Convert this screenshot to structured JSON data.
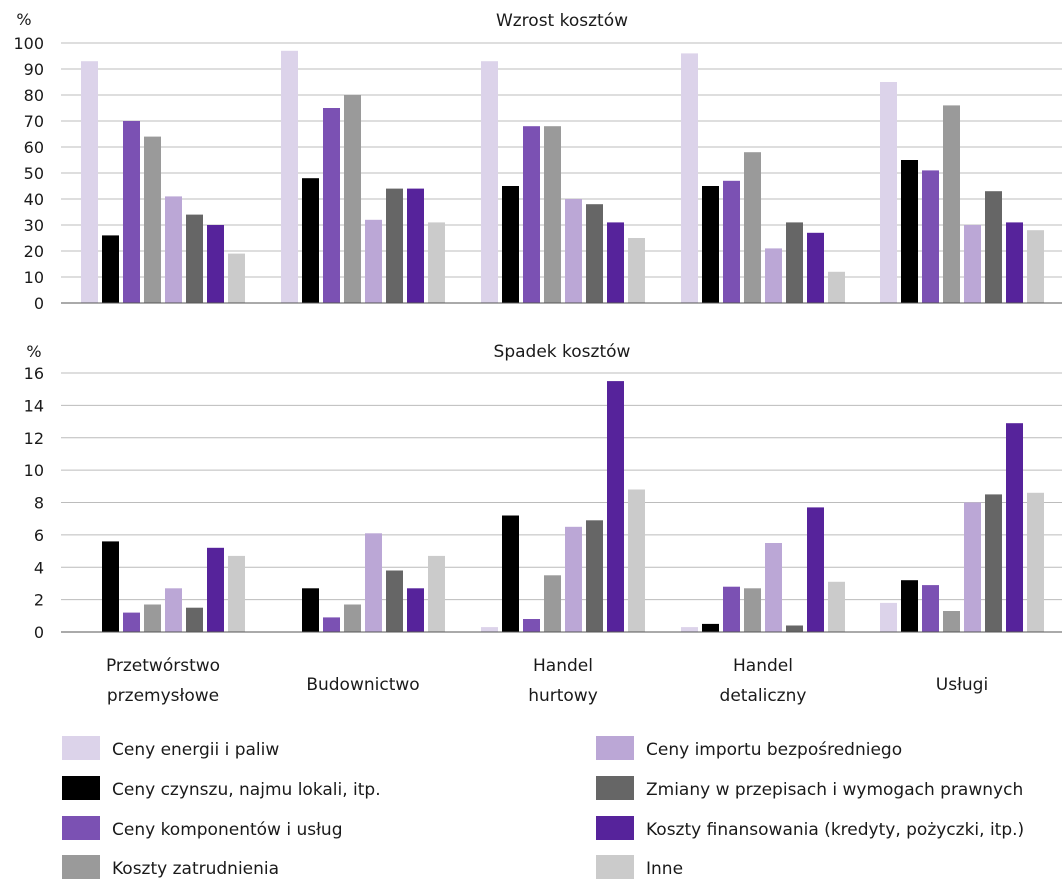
{
  "colors": {
    "series": [
      "#dcd3ea",
      "#000000",
      "#7b51b3",
      "#9a9a9a",
      "#bba7d6",
      "#666666",
      "#56239b",
      "#cbcbcb"
    ],
    "grid": "#bcbcbc",
    "axis": "#555555",
    "text": "#1a1a1a"
  },
  "legend": {
    "position": "bottom",
    "items": [
      "Ceny energii i paliw",
      "Ceny czynszu, najmu lokali, itp.",
      "Ceny komponentów i usług",
      "Koszty zatrudnienia",
      "Ceny importu bezpośredniego",
      "Zmiany w przepisach i wymogach prawnych",
      "Koszty finansowania (kredyty, pożyczki, itp.)",
      "Inne"
    ]
  },
  "category_labels": [
    [
      "Przetwórstwo",
      "przemysłowe"
    ],
    [
      "Budownictwo"
    ],
    [
      "Handel",
      "hurtowy"
    ],
    [
      "Handel",
      "detaliczny"
    ],
    [
      "Usługi"
    ]
  ],
  "chart_data": [
    {
      "type": "bar",
      "title": "Wzrost kosztów",
      "ylabel": "%",
      "xlabel": "",
      "ylim": [
        0,
        100
      ],
      "yticks": [
        0,
        10,
        20,
        30,
        40,
        50,
        60,
        70,
        80,
        90,
        100
      ],
      "grid": true,
      "categories": [
        "Przetwórstwo przemysłowe",
        "Budownictwo",
        "Handel hurtowy",
        "Handel detaliczny",
        "Usługi"
      ],
      "series": [
        {
          "name": "Ceny energii i paliw",
          "values": [
            93,
            97,
            93,
            96,
            85
          ]
        },
        {
          "name": "Ceny czynszu, najmu lokali, itp.",
          "values": [
            26,
            48,
            45,
            45,
            55
          ]
        },
        {
          "name": "Ceny komponentów i usług",
          "values": [
            70,
            75,
            68,
            47,
            51
          ]
        },
        {
          "name": "Koszty zatrudnienia",
          "values": [
            64,
            80,
            68,
            58,
            76
          ]
        },
        {
          "name": "Ceny importu bezpośredniego",
          "values": [
            41,
            32,
            40,
            21,
            30
          ]
        },
        {
          "name": "Zmiany w przepisach i wymogach prawnych",
          "values": [
            34,
            44,
            38,
            31,
            43
          ]
        },
        {
          "name": "Koszty finansowania (kredyty, pożyczki, itp.)",
          "values": [
            30,
            44,
            31,
            27,
            31
          ]
        },
        {
          "name": "Inne",
          "values": [
            19,
            31,
            25,
            12,
            28
          ]
        }
      ]
    },
    {
      "type": "bar",
      "title": "Spadek kosztów",
      "ylabel": "%",
      "xlabel": "",
      "ylim": [
        0,
        16
      ],
      "yticks": [
        0,
        2,
        4,
        6,
        8,
        10,
        12,
        14,
        16
      ],
      "grid": true,
      "categories": [
        "Przetwórstwo przemysłowe",
        "Budownictwo",
        "Handel hurtowy",
        "Handel detaliczny",
        "Usługi"
      ],
      "series": [
        {
          "name": "Ceny energii i paliw",
          "values": [
            0,
            0,
            0.3,
            0.3,
            1.8
          ]
        },
        {
          "name": "Ceny czynszu, najmu lokali, itp.",
          "values": [
            5.6,
            2.7,
            7.2,
            0.5,
            3.2
          ]
        },
        {
          "name": "Ceny komponentów i usług",
          "values": [
            1.2,
            0.9,
            0.8,
            2.8,
            2.9
          ]
        },
        {
          "name": "Koszty zatrudnienia",
          "values": [
            1.7,
            1.7,
            3.5,
            2.7,
            1.3
          ]
        },
        {
          "name": "Ceny importu bezpośredniego",
          "values": [
            2.7,
            6.1,
            6.5,
            5.5,
            8.0
          ]
        },
        {
          "name": "Zmiany w przepisach i wymogach prawnych",
          "values": [
            1.5,
            3.8,
            6.9,
            0.4,
            8.5
          ]
        },
        {
          "name": "Koszty finansowania (kredyty, pożyczki, itp.)",
          "values": [
            5.2,
            2.7,
            15.5,
            7.7,
            12.9
          ]
        },
        {
          "name": "Inne",
          "values": [
            4.7,
            4.7,
            8.8,
            3.1,
            8.6
          ]
        }
      ]
    }
  ]
}
